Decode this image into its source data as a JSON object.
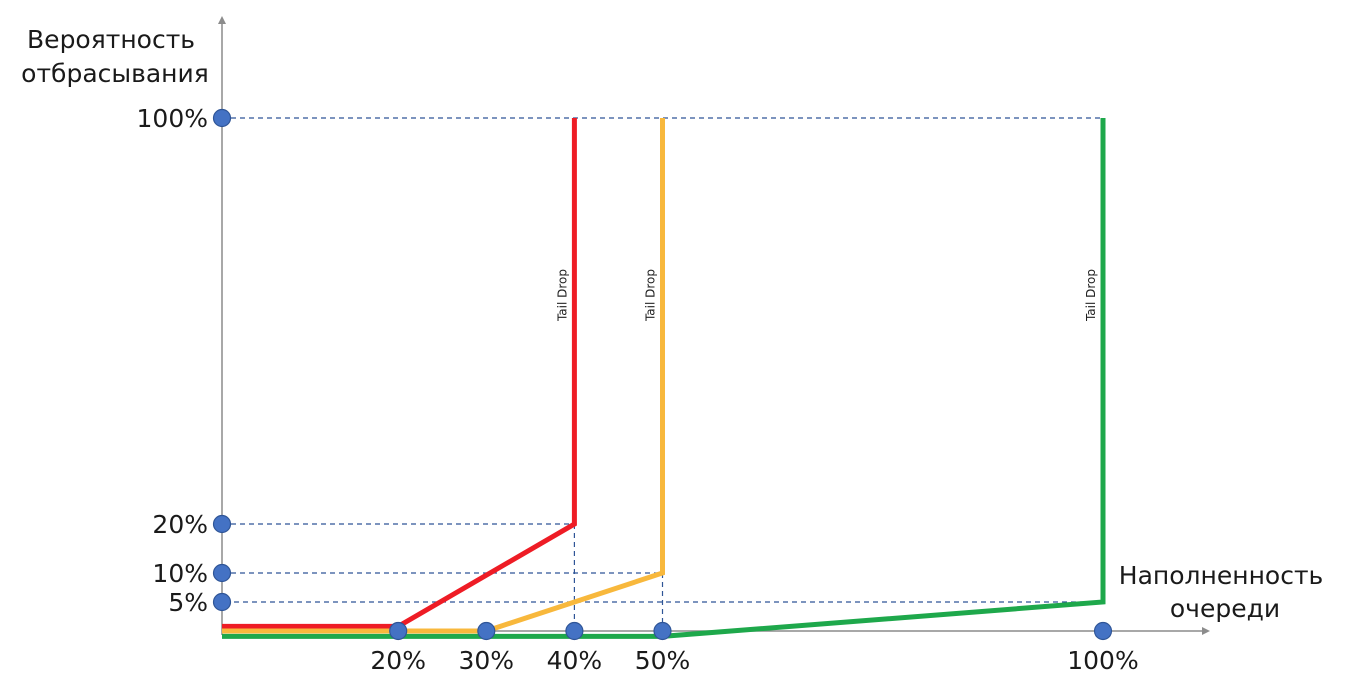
{
  "chart_data": {
    "type": "line",
    "ylabel": [
      "Вероятность",
      "отбрасывания"
    ],
    "xlabel": [
      "Наполненность",
      "очереди"
    ],
    "x_ticks": [
      "20%",
      "30%",
      "40%",
      "50%",
      "100%"
    ],
    "x_tick_values": [
      20,
      30,
      40,
      50,
      100
    ],
    "y_ticks": [
      "5%",
      "10%",
      "20%",
      "100%"
    ],
    "y_tick_values": [
      5,
      10,
      20,
      100
    ],
    "xlim": [
      0,
      100
    ],
    "ylim": [
      0,
      100
    ],
    "y_scale": "piecewise",
    "grid": false,
    "series": [
      {
        "color": "#ee1c25",
        "points": [
          [
            0,
            0.8
          ],
          [
            20,
            0.8
          ],
          [
            40,
            20
          ],
          [
            40,
            100
          ]
        ]
      },
      {
        "color": "#f8b83c",
        "points": [
          [
            0,
            0
          ],
          [
            30,
            0
          ],
          [
            50,
            10
          ],
          [
            50,
            100
          ]
        ]
      },
      {
        "color": "#1ea84b",
        "points": [
          [
            0,
            -0.8
          ],
          [
            50,
            -0.8
          ],
          [
            100,
            5
          ],
          [
            100,
            100
          ]
        ]
      }
    ],
    "annotations": [
      {
        "text": "Tail Drop",
        "x": 40
      },
      {
        "text": "Tail Drop",
        "x": 50
      },
      {
        "text": "Tail Drop",
        "x": 100
      }
    ],
    "colors": {
      "axis": "#8c8c8c",
      "guide": "#2f5597",
      "marker_fill": "#4472c4",
      "marker_stroke": "#2f5597"
    }
  }
}
